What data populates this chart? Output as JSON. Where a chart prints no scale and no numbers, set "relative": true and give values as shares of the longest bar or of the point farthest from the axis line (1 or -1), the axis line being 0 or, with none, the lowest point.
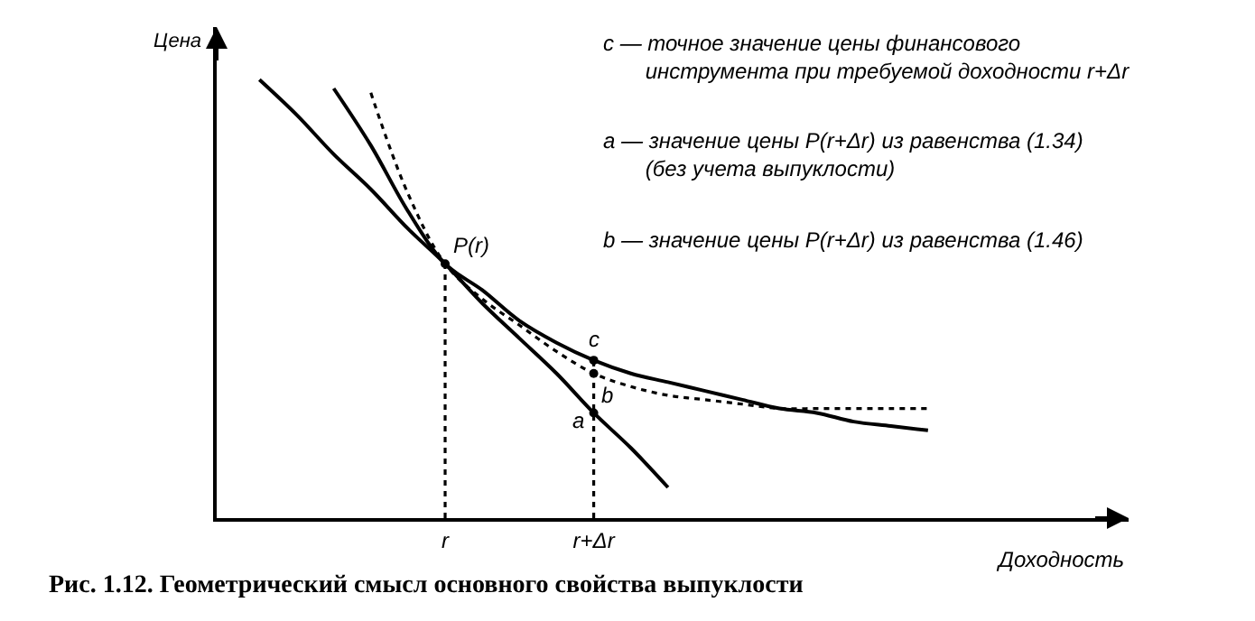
{
  "chart_data": {
    "type": "line",
    "relative": true,
    "title": "Рис. 1.12. Геометрический смысл основного свойства выпуклости",
    "xlabel": "Доходность",
    "ylabel": "Цена",
    "categories": [
      null,
      null,
      null,
      null,
      null,
      null,
      "r",
      null,
      null,
      null,
      "r+Δr",
      null,
      null,
      null,
      null,
      null,
      null,
      null,
      null,
      null
    ],
    "series": [
      {
        "color": "#000000",
        "line_style": "solid",
        "values": [
          null,
          1.0,
          0.92,
          0.83,
          0.75,
          0.66,
          0.58,
          0.49,
          0.41,
          0.33,
          0.24,
          0.16,
          0.07,
          null,
          null,
          null,
          null,
          null,
          null,
          null
        ]
      },
      {
        "color": "#000000",
        "line_style": "solid",
        "values": [
          null,
          null,
          null,
          0.98,
          0.85,
          0.7,
          0.58,
          0.52,
          0.45,
          0.4,
          0.36,
          0.33,
          0.31,
          0.29,
          0.27,
          0.25,
          0.24,
          0.22,
          0.21,
          0.2
        ]
      },
      {
        "color": "#000000",
        "line_style": "dotted",
        "values": [
          null,
          null,
          null,
          null,
          0.97,
          0.74,
          0.58,
          0.5,
          0.44,
          0.38,
          0.33,
          0.3,
          0.28,
          0.27,
          0.26,
          0.25,
          0.25,
          0.25,
          0.25,
          0.25
        ]
      },
      {
        "color": "#000000",
        "line_style": "dotted",
        "x": [
          "r",
          "r"
        ],
        "values": [
          0,
          0.58
        ]
      },
      {
        "color": "#000000",
        "line_style": "dotted",
        "x": [
          "r+Δr",
          "r+Δr"
        ],
        "values": [
          0,
          0.36
        ]
      }
    ],
    "annotations": [
      {
        "text": "P(r)",
        "x": "r",
        "y": 0.58
      },
      {
        "text": "c",
        "x": "r+Δr",
        "y": 0.36
      },
      {
        "text": "a",
        "x": "r+Δr",
        "y": 0.24
      },
      {
        "text": "b",
        "x": "r+Δr",
        "y": 0.33
      },
      "c — точное значение цены финансового\n       инструмента при требуемой доходности r+Δr",
      "a — значение цены P(r+Δr) из равенства (1.34)\n       (без учета выпуклости)",
      "b — значение цены P(r+Δr) из равенства (1.46)"
    ]
  }
}
